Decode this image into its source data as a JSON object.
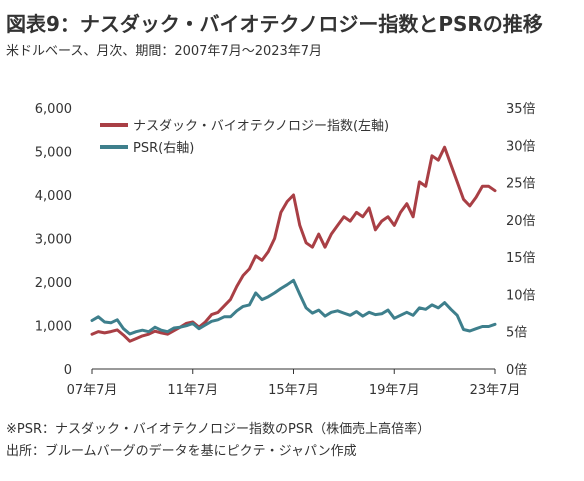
{
  "title": "図表9：ナスダック・バイオテクノロジー指数とPSRの推移",
  "subtitle": "米ドルベース、月次、期間：2007年7月～2023年7月",
  "notes": {
    "psr_note": "※PSR：ナスダック・バイオテクノロジー指数のPSR（株価売上高倍率）",
    "source": "出所：ブルームバーグのデータを基にピクテ・ジャパン作成"
  },
  "colors": {
    "index": "#A93F45",
    "psr": "#3E7F8C",
    "axis": "#333333"
  },
  "chart_data": {
    "type": "line",
    "x_ticks": [
      "07年7月",
      "11年7月",
      "15年7月",
      "19年7月",
      "23年7月"
    ],
    "y_left": {
      "ticks": [
        "0",
        "1,000",
        "2,000",
        "3,000",
        "4,000",
        "5,000",
        "6,000"
      ],
      "range": [
        0,
        6000
      ]
    },
    "y_right": {
      "ticks": [
        "0倍",
        "5倍",
        "10倍",
        "15倍",
        "20倍",
        "25倍",
        "30倍",
        "35倍"
      ],
      "range": [
        0,
        35
      ]
    },
    "x_range": [
      2007.5,
      2023.5
    ],
    "legend_position": "top-left",
    "grid": false,
    "series": [
      {
        "name": "ナスダック・バイオテクノロジー指数(左軸)",
        "axis": "left",
        "x": [
          2007.5,
          2007.75,
          2008.0,
          2008.25,
          2008.5,
          2008.75,
          2009.0,
          2009.25,
          2009.5,
          2009.75,
          2010.0,
          2010.25,
          2010.5,
          2010.75,
          2011.0,
          2011.25,
          2011.5,
          2011.75,
          2012.0,
          2012.25,
          2012.5,
          2012.75,
          2013.0,
          2013.25,
          2013.5,
          2013.75,
          2014.0,
          2014.25,
          2014.5,
          2014.75,
          2015.0,
          2015.25,
          2015.5,
          2015.75,
          2016.0,
          2016.25,
          2016.5,
          2016.75,
          2017.0,
          2017.25,
          2017.5,
          2017.75,
          2018.0,
          2018.25,
          2018.5,
          2018.75,
          2019.0,
          2019.25,
          2019.5,
          2019.75,
          2020.0,
          2020.25,
          2020.5,
          2020.75,
          2021.0,
          2021.25,
          2021.5,
          2021.75,
          2022.0,
          2022.25,
          2022.5,
          2022.75,
          2023.0,
          2023.25,
          2023.5
        ],
        "values": [
          800,
          860,
          830,
          860,
          900,
          780,
          640,
          700,
          760,
          800,
          870,
          830,
          800,
          880,
          960,
          1050,
          1080,
          960,
          1080,
          1250,
          1300,
          1450,
          1600,
          1900,
          2150,
          2300,
          2600,
          2500,
          2700,
          3000,
          3600,
          3850,
          4000,
          3300,
          2900,
          2800,
          3100,
          2800,
          3100,
          3300,
          3500,
          3400,
          3600,
          3500,
          3700,
          3200,
          3400,
          3500,
          3300,
          3600,
          3800,
          3500,
          4300,
          4200,
          4900,
          4800,
          5100,
          4700,
          4300,
          3900,
          3750,
          3950,
          4200,
          4200,
          4100
        ]
      },
      {
        "name": "PSR(右軸)",
        "axis": "right",
        "x": [
          2007.5,
          2007.75,
          2008.0,
          2008.25,
          2008.5,
          2008.75,
          2009.0,
          2009.25,
          2009.5,
          2009.75,
          2010.0,
          2010.25,
          2010.5,
          2010.75,
          2011.0,
          2011.25,
          2011.5,
          2011.75,
          2012.0,
          2012.25,
          2012.5,
          2012.75,
          2013.0,
          2013.25,
          2013.5,
          2013.75,
          2014.0,
          2014.25,
          2014.5,
          2014.75,
          2015.0,
          2015.25,
          2015.5,
          2015.75,
          2016.0,
          2016.25,
          2016.5,
          2016.75,
          2017.0,
          2017.25,
          2017.5,
          2017.75,
          2018.0,
          2018.25,
          2018.5,
          2018.75,
          2019.0,
          2019.25,
          2019.5,
          2019.75,
          2020.0,
          2020.25,
          2020.5,
          2020.75,
          2021.0,
          2021.25,
          2021.5,
          2021.75,
          2022.0,
          2022.25,
          2022.5,
          2022.75,
          2023.0,
          2023.25,
          2023.5
        ],
        "values": [
          6.5,
          7.0,
          6.3,
          6.2,
          6.6,
          5.4,
          4.7,
          5.0,
          5.2,
          5.0,
          5.6,
          5.2,
          5.0,
          5.5,
          5.6,
          5.8,
          6.1,
          5.4,
          5.9,
          6.4,
          6.6,
          7.0,
          7.0,
          7.8,
          8.4,
          8.6,
          10.2,
          9.3,
          9.7,
          10.2,
          10.8,
          11.3,
          11.9,
          10.0,
          8.2,
          7.5,
          7.9,
          7.1,
          7.6,
          7.8,
          7.5,
          7.2,
          7.7,
          7.1,
          7.6,
          7.3,
          7.4,
          7.9,
          6.8,
          7.2,
          7.6,
          7.2,
          8.2,
          8.0,
          8.6,
          8.2,
          8.9,
          8.0,
          7.2,
          5.3,
          5.1,
          5.4,
          5.7,
          5.7,
          6.0
        ]
      }
    ]
  }
}
